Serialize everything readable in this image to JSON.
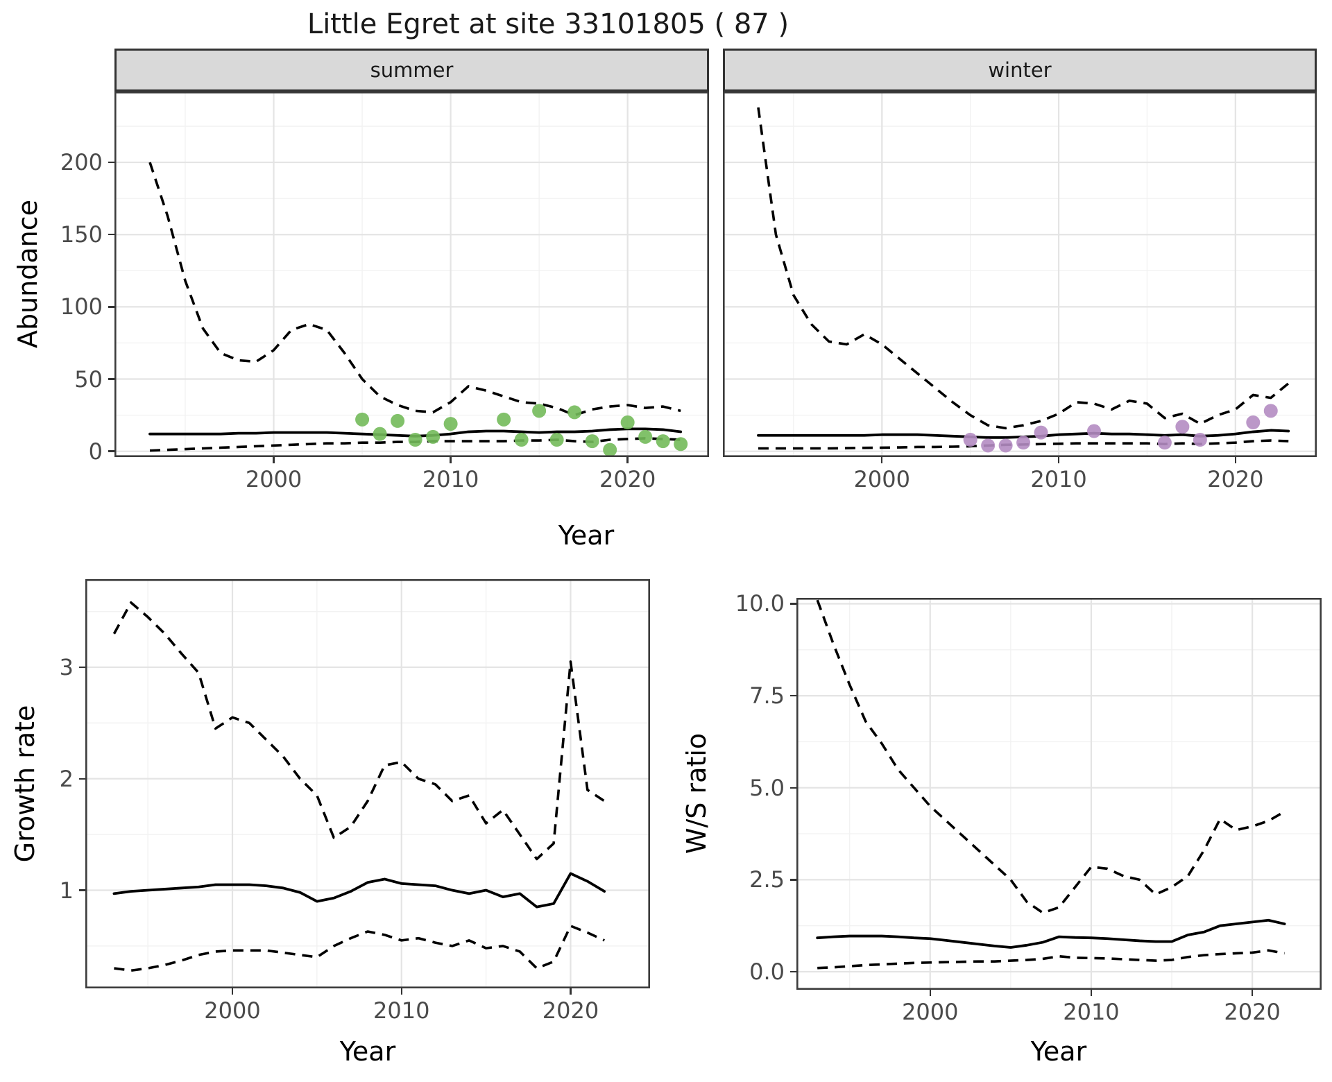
{
  "chart_data": {
    "type": "line",
    "title": "Little Egret at site 33101805 ( 87 )",
    "xlabel": "Year",
    "x_ticks": [
      2000,
      2010,
      2020
    ],
    "x_tick_labels": [
      "2000",
      "2010",
      "2020"
    ],
    "x_minor": [
      1995,
      2005,
      2015
    ],
    "legend": "none",
    "grid": "on",
    "line_styles": {
      "median": "solid black",
      "credible_interval": "dashed black"
    },
    "abundance": {
      "ylabel": "Abundance",
      "y_ticks": [
        0,
        50,
        100,
        150,
        200
      ],
      "y_tick_labels": [
        "0",
        "50",
        "100",
        "150",
        "200"
      ],
      "y_minor": [
        25,
        75,
        125,
        175,
        225
      ],
      "ylim": [
        -4,
        249
      ],
      "xlim": [
        1991,
        2024.6
      ],
      "years": [
        1993,
        1994,
        1995,
        1996,
        1997,
        1998,
        1999,
        2000,
        2001,
        2002,
        2003,
        2004,
        2005,
        2006,
        2007,
        2008,
        2009,
        2010,
        2011,
        2012,
        2013,
        2014,
        2015,
        2016,
        2017,
        2018,
        2019,
        2020,
        2021,
        2022,
        2023
      ],
      "facets": [
        {
          "label": "summer",
          "point_color": "#73BA5A",
          "upper": [
            200,
            163,
            118,
            85,
            68,
            63,
            62,
            70,
            84,
            88,
            84,
            68,
            50,
            38,
            32,
            28,
            27,
            34,
            45,
            42,
            38,
            34,
            33,
            30,
            25,
            29,
            31,
            32,
            30,
            31,
            28
          ],
          "median": [
            12,
            12,
            12,
            12,
            12,
            12.5,
            12.5,
            13,
            13,
            13,
            13,
            12.5,
            12,
            11.5,
            11,
            10.5,
            11,
            12,
            13.5,
            14,
            14,
            13.5,
            13,
            13.5,
            13.5,
            14,
            15,
            15.5,
            15.5,
            15,
            13.5
          ],
          "lower": [
            0.5,
            1,
            1.5,
            2,
            2.5,
            3,
            3.5,
            4,
            4.5,
            5,
            5.5,
            5.5,
            6,
            6,
            6.5,
            6.5,
            7,
            7,
            7,
            7,
            7,
            7.5,
            7.5,
            8,
            7,
            6.5,
            8,
            8.5,
            9,
            8.5,
            8
          ],
          "obs_years": [
            2005,
            2006,
            2007,
            2008,
            2009,
            2010,
            2013,
            2014,
            2015,
            2016,
            2017,
            2018,
            2019,
            2020,
            2021,
            2022,
            2023
          ],
          "obs_counts": [
            22,
            12,
            21,
            8,
            10,
            19,
            22,
            8,
            28,
            8,
            27,
            7,
            1,
            20,
            10,
            7,
            5
          ]
        },
        {
          "label": "winter",
          "point_color": "#B48CC2",
          "upper": [
            238,
            150,
            108,
            88,
            76,
            74,
            81,
            74,
            64,
            54,
            44,
            34,
            25,
            18,
            16,
            18,
            21,
            26,
            34,
            33,
            29,
            35,
            33,
            23,
            26,
            19,
            25,
            29,
            39,
            37,
            47
          ],
          "median": [
            11,
            11,
            11,
            11,
            11,
            11,
            11,
            11.5,
            11.5,
            11.5,
            11,
            10.5,
            10,
            9.5,
            9.5,
            10,
            10.5,
            11.5,
            12,
            12.5,
            12,
            12,
            11.5,
            11,
            11.5,
            10.5,
            11,
            12,
            13.5,
            14.5,
            14
          ],
          "lower": [
            2,
            2,
            2,
            2,
            2,
            2.2,
            2.4,
            2.5,
            2.7,
            3,
            3,
            3.2,
            3.5,
            4,
            4.5,
            4.7,
            5,
            5.2,
            5.5,
            5.5,
            5.5,
            5.5,
            5.5,
            5,
            5.5,
            5,
            5.5,
            6,
            7,
            7.5,
            7
          ],
          "obs_years": [
            2005,
            2006,
            2007,
            2008,
            2009,
            2012,
            2016,
            2017,
            2018,
            2021,
            2022
          ],
          "obs_counts": [
            8,
            4,
            4,
            6,
            13,
            14,
            6,
            17,
            8,
            20,
            28
          ]
        }
      ]
    },
    "growth_rate": {
      "ylabel": "Growth rate",
      "y_ticks": [
        1,
        2,
        3
      ],
      "y_tick_labels": [
        "1",
        "2",
        "3"
      ],
      "y_minor": [
        0.5,
        1.5,
        2.5,
        3.5
      ],
      "ylim": [
        0.12,
        3.79
      ],
      "xlim": [
        1991.3,
        2024.7
      ],
      "years": [
        1993,
        1994,
        1995,
        1996,
        1997,
        1998,
        1999,
        2000,
        2001,
        2002,
        2003,
        2004,
        2005,
        2006,
        2007,
        2008,
        2009,
        2010,
        2011,
        2012,
        2013,
        2014,
        2015,
        2016,
        2017,
        2018,
        2019,
        2020,
        2021,
        2022
      ],
      "upper": [
        3.3,
        3.58,
        3.45,
        3.3,
        3.12,
        2.95,
        2.45,
        2.55,
        2.5,
        2.35,
        2.2,
        2.0,
        1.85,
        1.47,
        1.57,
        1.8,
        2.12,
        2.15,
        2.0,
        1.95,
        1.8,
        1.85,
        1.6,
        1.72,
        1.5,
        1.28,
        1.42,
        3.05,
        1.9,
        1.8
      ],
      "median": [
        0.97,
        0.99,
        1.0,
        1.01,
        1.02,
        1.03,
        1.05,
        1.05,
        1.05,
        1.04,
        1.02,
        0.98,
        0.9,
        0.93,
        0.99,
        1.07,
        1.1,
        1.06,
        1.05,
        1.04,
        1.0,
        0.97,
        1.0,
        0.94,
        0.97,
        0.85,
        0.88,
        1.15,
        1.08,
        0.99
      ],
      "lower": [
        0.3,
        0.28,
        0.3,
        0.33,
        0.37,
        0.42,
        0.45,
        0.46,
        0.46,
        0.46,
        0.44,
        0.42,
        0.4,
        0.5,
        0.57,
        0.63,
        0.6,
        0.55,
        0.57,
        0.53,
        0.5,
        0.55,
        0.48,
        0.5,
        0.45,
        0.3,
        0.36,
        0.68,
        0.62,
        0.55
      ]
    },
    "ws_ratio": {
      "ylabel": "W/S ratio",
      "y_ticks": [
        0,
        2.5,
        5,
        7.5,
        10
      ],
      "y_tick_labels": [
        "0.0",
        "2.5",
        "5.0",
        "7.5",
        "10.0"
      ],
      "y_minor": [
        1.25,
        3.75,
        6.25,
        8.75
      ],
      "ylim": [
        -0.49,
        10.16
      ],
      "xlim": [
        1991.7,
        2024.3
      ],
      "years": [
        1993,
        1994,
        1995,
        1996,
        1997,
        1998,
        1999,
        2000,
        2001,
        2002,
        2003,
        2004,
        2005,
        2006,
        2007,
        2008,
        2009,
        2010,
        2011,
        2012,
        2013,
        2014,
        2015,
        2016,
        2017,
        2018,
        2019,
        2020,
        2021,
        2022
      ],
      "upper": [
        10.1,
        8.9,
        7.8,
        6.8,
        6.2,
        5.5,
        5.0,
        4.5,
        4.1,
        3.7,
        3.3,
        2.9,
        2.5,
        1.9,
        1.6,
        1.75,
        2.3,
        2.85,
        2.8,
        2.6,
        2.5,
        2.1,
        2.3,
        2.6,
        3.3,
        4.15,
        3.85,
        3.95,
        4.1,
        4.35
      ],
      "median": [
        0.92,
        0.95,
        0.97,
        0.97,
        0.97,
        0.95,
        0.92,
        0.9,
        0.85,
        0.8,
        0.75,
        0.7,
        0.66,
        0.72,
        0.8,
        0.95,
        0.93,
        0.92,
        0.9,
        0.87,
        0.84,
        0.82,
        0.82,
        1.0,
        1.08,
        1.25,
        1.3,
        1.35,
        1.4,
        1.3
      ],
      "lower": [
        0.1,
        0.12,
        0.15,
        0.18,
        0.2,
        0.22,
        0.24,
        0.25,
        0.26,
        0.27,
        0.28,
        0.28,
        0.3,
        0.32,
        0.35,
        0.42,
        0.38,
        0.37,
        0.36,
        0.34,
        0.32,
        0.3,
        0.32,
        0.4,
        0.45,
        0.48,
        0.5,
        0.52,
        0.58,
        0.5
      ]
    },
    "style": {
      "strip_fill": "#D9D9D9",
      "grid_major": "#E4E4E4",
      "grid_minor": "#F2F2F2",
      "panel_border": "#3C3C3C",
      "tick_label_color": "#4A4A4A",
      "summer_point_color": "#73BA5A",
      "winter_point_color": "#B48CC2"
    }
  }
}
